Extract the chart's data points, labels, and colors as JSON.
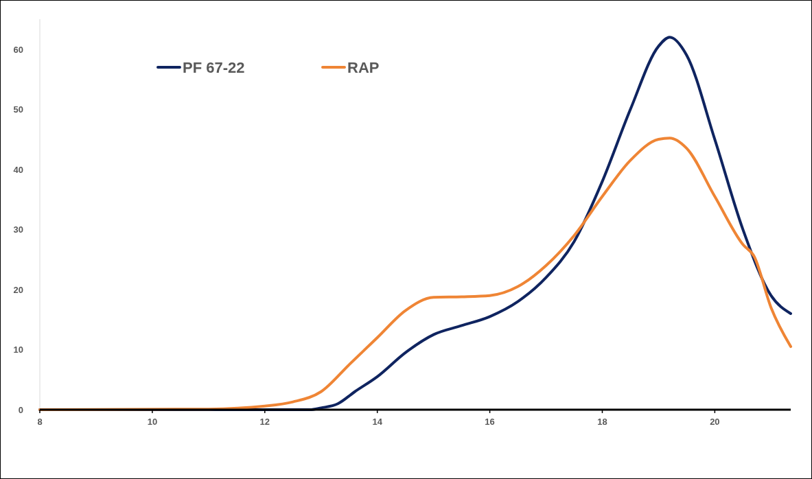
{
  "chart_data": {
    "type": "line",
    "xlim": [
      8,
      21.35
    ],
    "xticks": [
      8,
      10,
      12,
      14,
      16,
      18,
      20
    ],
    "ylim": [
      0,
      65
    ],
    "yticks": [
      0,
      10,
      20,
      30,
      40,
      50,
      60
    ],
    "grid": false,
    "legend": "top left",
    "marker": "none",
    "line_style": "solid",
    "series": [
      {
        "name": "PF 67-22",
        "color": "#0f2460",
        "x": [
          8,
          12,
          12.8,
          13,
          13.3,
          13.6,
          14,
          14.5,
          15,
          15.5,
          16,
          16.5,
          17,
          17.5,
          18,
          18.5,
          19,
          19.2,
          19.5,
          20,
          20.5,
          21,
          21.35
        ],
        "values": [
          0,
          0,
          0,
          0.3,
          1,
          3,
          5.5,
          9.5,
          12.5,
          14,
          15.5,
          18,
          22,
          28,
          38,
          50,
          60.5,
          62,
          59,
          45,
          30,
          19,
          16
        ]
      },
      {
        "name": "RAP",
        "color": "#ef8535",
        "x": [
          8,
          11,
          12,
          12.5,
          13,
          13.5,
          14,
          14.5,
          15,
          15.5,
          16,
          16.5,
          17,
          17.5,
          18,
          18.5,
          19,
          19.2,
          19.5,
          20,
          20.5,
          20.7,
          21,
          21.35
        ],
        "values": [
          0,
          0.1,
          0.6,
          1.3,
          3,
          7.5,
          12,
          16.5,
          18.7,
          18.8,
          19,
          20.5,
          24,
          29,
          35.5,
          41.5,
          45,
          45.2,
          43.5,
          35.5,
          27.5,
          25.5,
          17,
          10.5
        ]
      }
    ]
  }
}
